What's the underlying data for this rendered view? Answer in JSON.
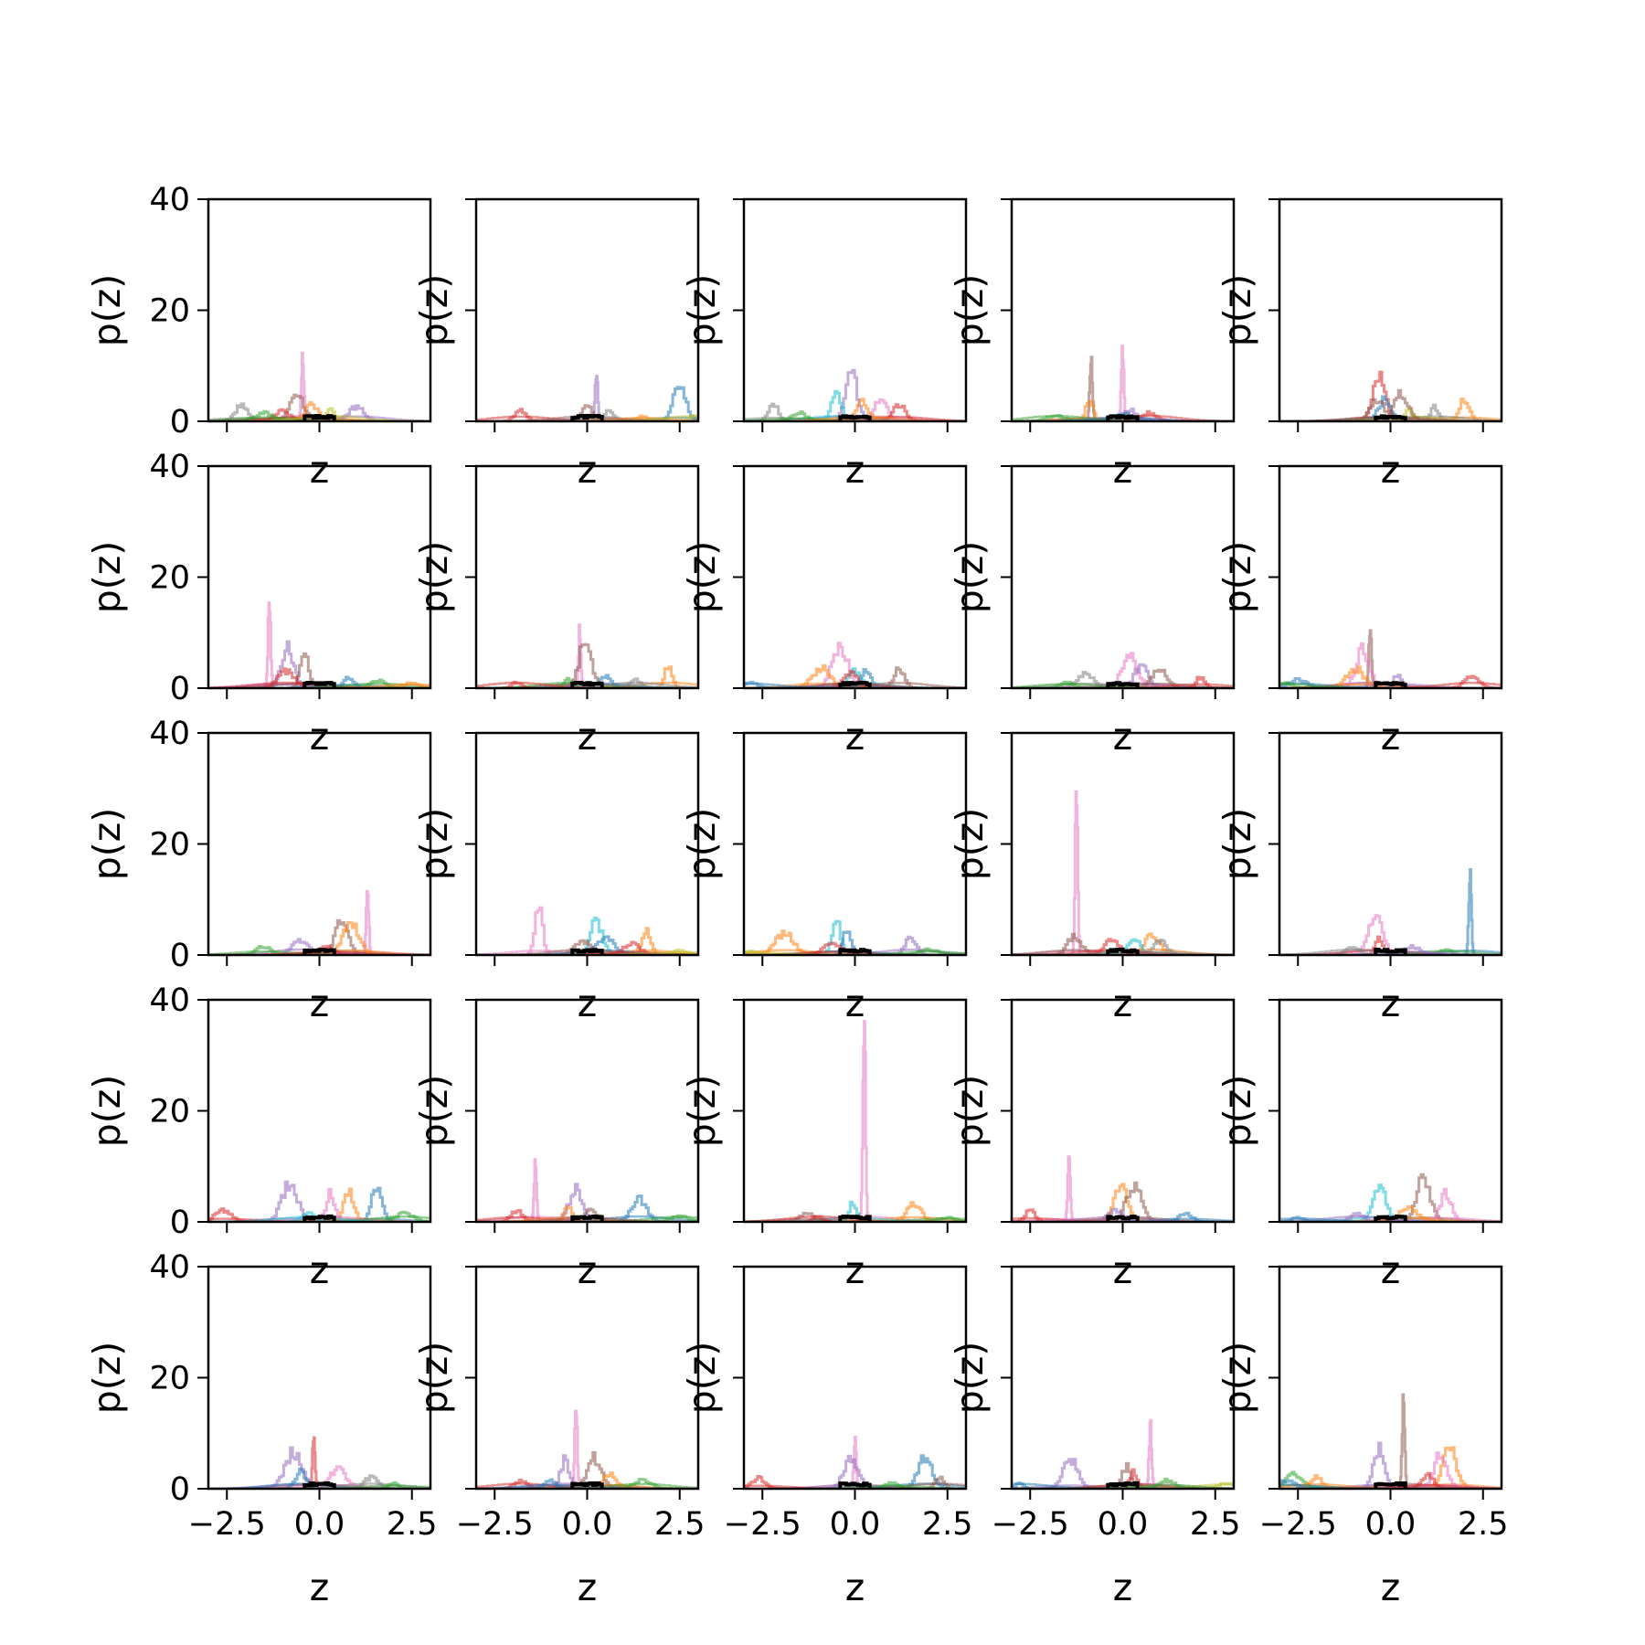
{
  "chart_data": {
    "type": "histogram-grid",
    "grid": {
      "rows": 5,
      "cols": 5
    },
    "xlabel": "z",
    "ylabel": "p(z)",
    "xlim": [
      -3.0,
      3.0
    ],
    "ylim": [
      0,
      40
    ],
    "xticks": [
      -2.5,
      0.0,
      2.5
    ],
    "xtick_labels": [
      "−2.5",
      "0.0",
      "2.5"
    ],
    "yticks": [
      0,
      20,
      40
    ],
    "ytick_labels": [
      "0",
      "20",
      "40"
    ],
    "series_colors": [
      "#1f77b4",
      "#ff7f0e",
      "#2ca02c",
      "#d62728",
      "#9467bd",
      "#8c564b",
      "#e377c2",
      "#7f7f7f",
      "#bcbd22",
      "#17becf"
    ],
    "summary_color": "#000000",
    "panels": [
      {
        "row": 0,
        "col": 0,
        "peaks": [
          {
            "c": 6,
            "x": -0.45,
            "h": 12.0
          },
          {
            "c": 7,
            "x": -2.1,
            "h": 3.0
          },
          {
            "c": 5,
            "x": -0.6,
            "h": 4.5
          },
          {
            "c": 1,
            "x": -0.2,
            "h": 3.0
          },
          {
            "c": 4,
            "x": 1.0,
            "h": 2.5
          },
          {
            "c": 3,
            "x": -1.0,
            "h": 2.0
          },
          {
            "c": 2,
            "x": -1.5,
            "h": 1.5
          },
          {
            "c": 8,
            "x": 0.3,
            "h": 2.0
          }
        ]
      },
      {
        "row": 0,
        "col": 1,
        "peaks": [
          {
            "c": 4,
            "x": 0.25,
            "h": 9.5
          },
          {
            "c": 0,
            "x": 2.5,
            "h": 7.0
          },
          {
            "c": 3,
            "x": -1.8,
            "h": 2.0
          },
          {
            "c": 5,
            "x": 0.0,
            "h": 3.0
          },
          {
            "c": 7,
            "x": 0.6,
            "h": 2.0
          },
          {
            "c": 1,
            "x": 1.5,
            "h": 1.0
          },
          {
            "c": 8,
            "x": 2.9,
            "h": 1.0
          }
        ]
      },
      {
        "row": 0,
        "col": 2,
        "peaks": [
          {
            "c": 4,
            "x": -0.1,
            "h": 9.0
          },
          {
            "c": 9,
            "x": -0.5,
            "h": 5.0
          },
          {
            "c": 7,
            "x": -2.2,
            "h": 3.0
          },
          {
            "c": 6,
            "x": 0.7,
            "h": 4.5
          },
          {
            "c": 3,
            "x": 1.2,
            "h": 3.0
          },
          {
            "c": 2,
            "x": -1.5,
            "h": 1.5
          },
          {
            "c": 1,
            "x": 0.2,
            "h": 3.5
          }
        ]
      },
      {
        "row": 0,
        "col": 3,
        "peaks": [
          {
            "c": 6,
            "x": 0.0,
            "h": 12.5
          },
          {
            "c": 5,
            "x": -0.85,
            "h": 12.0
          },
          {
            "c": 1,
            "x": -0.9,
            "h": 3.5
          },
          {
            "c": 4,
            "x": 0.2,
            "h": 2.0
          },
          {
            "c": 3,
            "x": 0.7,
            "h": 1.5
          },
          {
            "c": 2,
            "x": -1.8,
            "h": 1.0
          },
          {
            "c": 0,
            "x": 0.0,
            "h": 1.5
          }
        ]
      },
      {
        "row": 0,
        "col": 4,
        "peaks": [
          {
            "c": 3,
            "x": -0.3,
            "h": 8.0
          },
          {
            "c": 0,
            "x": -0.15,
            "h": 4.0
          },
          {
            "c": 5,
            "x": -0.35,
            "h": 4.0
          },
          {
            "c": 1,
            "x": 2.0,
            "h": 4.0
          },
          {
            "c": 7,
            "x": 1.2,
            "h": 2.5
          },
          {
            "c": 8,
            "x": 0.5,
            "h": 2.0
          },
          {
            "c": 5,
            "x": 0.3,
            "h": 5.0
          }
        ]
      },
      {
        "row": 1,
        "col": 0,
        "peaks": [
          {
            "c": 6,
            "x": -1.35,
            "h": 15.5
          },
          {
            "c": 4,
            "x": -0.85,
            "h": 7.0
          },
          {
            "c": 5,
            "x": -0.4,
            "h": 6.5
          },
          {
            "c": 3,
            "x": -0.9,
            "h": 3.0
          },
          {
            "c": 0,
            "x": 0.8,
            "h": 2.0
          },
          {
            "c": 2,
            "x": 1.6,
            "h": 1.5
          },
          {
            "c": 1,
            "x": 2.5,
            "h": 1.0
          }
        ]
      },
      {
        "row": 1,
        "col": 1,
        "peaks": [
          {
            "c": 6,
            "x": -0.2,
            "h": 10.0
          },
          {
            "c": 5,
            "x": -0.05,
            "h": 8.0
          },
          {
            "c": 1,
            "x": 2.2,
            "h": 4.0
          },
          {
            "c": 0,
            "x": 0.5,
            "h": 2.0
          },
          {
            "c": 2,
            "x": -0.5,
            "h": 1.5
          },
          {
            "c": 7,
            "x": 1.3,
            "h": 1.5
          },
          {
            "c": 3,
            "x": -1.9,
            "h": 1.0
          }
        ]
      },
      {
        "row": 1,
        "col": 2,
        "peaks": [
          {
            "c": 6,
            "x": -0.4,
            "h": 7.5
          },
          {
            "c": 1,
            "x": -0.9,
            "h": 3.5
          },
          {
            "c": 0,
            "x": 0.3,
            "h": 3.5
          },
          {
            "c": 5,
            "x": 1.2,
            "h": 3.5
          },
          {
            "c": 9,
            "x": 0.0,
            "h": 3.0
          },
          {
            "c": 3,
            "x": -0.1,
            "h": 2.5
          },
          {
            "c": 0,
            "x": -2.8,
            "h": 1.0
          }
        ]
      },
      {
        "row": 1,
        "col": 3,
        "peaks": [
          {
            "c": 6,
            "x": 0.2,
            "h": 5.5
          },
          {
            "c": 4,
            "x": 0.5,
            "h": 4.0
          },
          {
            "c": 5,
            "x": 1.0,
            "h": 3.5
          },
          {
            "c": 7,
            "x": -1.0,
            "h": 2.5
          },
          {
            "c": 3,
            "x": 2.1,
            "h": 2.0
          },
          {
            "c": 2,
            "x": -1.5,
            "h": 1.0
          }
        ]
      },
      {
        "row": 1,
        "col": 4,
        "peaks": [
          {
            "c": 5,
            "x": -0.55,
            "h": 11.5
          },
          {
            "c": 6,
            "x": -0.75,
            "h": 7.0
          },
          {
            "c": 1,
            "x": -0.95,
            "h": 3.5
          },
          {
            "c": 4,
            "x": 0.2,
            "h": 2.5
          },
          {
            "c": 3,
            "x": 2.2,
            "h": 2.0
          },
          {
            "c": 0,
            "x": -2.5,
            "h": 1.5
          },
          {
            "c": 2,
            "x": -2.9,
            "h": 1.0
          }
        ]
      },
      {
        "row": 2,
        "col": 0,
        "peaks": [
          {
            "c": 6,
            "x": 1.3,
            "h": 12.0
          },
          {
            "c": 5,
            "x": 0.6,
            "h": 6.0
          },
          {
            "c": 1,
            "x": 0.85,
            "h": 5.5
          },
          {
            "c": 4,
            "x": -0.5,
            "h": 2.5
          },
          {
            "c": 2,
            "x": -1.5,
            "h": 1.5
          },
          {
            "c": 3,
            "x": 0.2,
            "h": 1.5
          }
        ]
      },
      {
        "row": 2,
        "col": 1,
        "peaks": [
          {
            "c": 6,
            "x": -1.3,
            "h": 8.5
          },
          {
            "c": 9,
            "x": 0.25,
            "h": 6.0
          },
          {
            "c": 1,
            "x": 1.6,
            "h": 4.5
          },
          {
            "c": 0,
            "x": 0.5,
            "h": 3.0
          },
          {
            "c": 5,
            "x": -0.1,
            "h": 2.5
          },
          {
            "c": 3,
            "x": 1.2,
            "h": 2.0
          },
          {
            "c": 8,
            "x": 2.5,
            "h": 0.8
          }
        ]
      },
      {
        "row": 2,
        "col": 2,
        "peaks": [
          {
            "c": 9,
            "x": -0.5,
            "h": 6.5
          },
          {
            "c": 0,
            "x": -0.2,
            "h": 5.0
          },
          {
            "c": 1,
            "x": -1.9,
            "h": 4.0
          },
          {
            "c": 4,
            "x": 1.5,
            "h": 3.0
          },
          {
            "c": 3,
            "x": -0.6,
            "h": 2.0
          },
          {
            "c": 2,
            "x": 2.0,
            "h": 1.0
          },
          {
            "c": 8,
            "x": -2.8,
            "h": 0.8
          }
        ]
      },
      {
        "row": 2,
        "col": 3,
        "peaks": [
          {
            "c": 6,
            "x": -1.25,
            "h": 29.0
          },
          {
            "c": 5,
            "x": -1.3,
            "h": 3.5
          },
          {
            "c": 1,
            "x": 0.8,
            "h": 3.5
          },
          {
            "c": 9,
            "x": 0.3,
            "h": 3.0
          },
          {
            "c": 7,
            "x": 1.0,
            "h": 2.5
          },
          {
            "c": 3,
            "x": -0.3,
            "h": 2.5
          }
        ]
      },
      {
        "row": 2,
        "col": 4,
        "peaks": [
          {
            "c": 0,
            "x": 2.15,
            "h": 16.5
          },
          {
            "c": 6,
            "x": -0.4,
            "h": 7.5
          },
          {
            "c": 3,
            "x": -0.3,
            "h": 3.0
          },
          {
            "c": 7,
            "x": -1.0,
            "h": 1.5
          },
          {
            "c": 2,
            "x": 1.5,
            "h": 1.0
          },
          {
            "c": 4,
            "x": 0.6,
            "h": 1.5
          }
        ]
      },
      {
        "row": 3,
        "col": 0,
        "peaks": [
          {
            "c": 0,
            "x": 1.55,
            "h": 6.0
          },
          {
            "c": 4,
            "x": -0.8,
            "h": 7.0
          },
          {
            "c": 1,
            "x": 0.8,
            "h": 5.5
          },
          {
            "c": 6,
            "x": 0.3,
            "h": 5.0
          },
          {
            "c": 3,
            "x": -2.6,
            "h": 2.0
          },
          {
            "c": 2,
            "x": 2.3,
            "h": 1.5
          },
          {
            "c": 9,
            "x": -0.3,
            "h": 1.5
          }
        ]
      },
      {
        "row": 3,
        "col": 1,
        "peaks": [
          {
            "c": 6,
            "x": -1.4,
            "h": 10.5
          },
          {
            "c": 4,
            "x": -0.3,
            "h": 6.0
          },
          {
            "c": 0,
            "x": 1.4,
            "h": 4.0
          },
          {
            "c": 3,
            "x": -1.9,
            "h": 2.0
          },
          {
            "c": 1,
            "x": -0.5,
            "h": 2.5
          },
          {
            "c": 2,
            "x": 2.5,
            "h": 1.0
          },
          {
            "c": 5,
            "x": 0.1,
            "h": 2.0
          }
        ]
      },
      {
        "row": 3,
        "col": 2,
        "peaks": [
          {
            "c": 6,
            "x": 0.25,
            "h": 38.0
          },
          {
            "c": 1,
            "x": 1.6,
            "h": 3.5
          },
          {
            "c": 9,
            "x": -0.05,
            "h": 3.5
          },
          {
            "c": 5,
            "x": -1.3,
            "h": 1.5
          },
          {
            "c": 2,
            "x": 2.5,
            "h": 0.8
          },
          {
            "c": 3,
            "x": -1.0,
            "h": 1.0
          }
        ]
      },
      {
        "row": 3,
        "col": 3,
        "peaks": [
          {
            "c": 6,
            "x": -1.45,
            "h": 12.0
          },
          {
            "c": 1,
            "x": -0.05,
            "h": 7.0
          },
          {
            "c": 5,
            "x": 0.3,
            "h": 6.5
          },
          {
            "c": 3,
            "x": -2.5,
            "h": 2.0
          },
          {
            "c": 0,
            "x": 1.7,
            "h": 1.5
          },
          {
            "c": 4,
            "x": -0.2,
            "h": 2.0
          }
        ]
      },
      {
        "row": 3,
        "col": 4,
        "peaks": [
          {
            "c": 5,
            "x": 0.9,
            "h": 8.0
          },
          {
            "c": 9,
            "x": -0.3,
            "h": 6.5
          },
          {
            "c": 6,
            "x": 1.5,
            "h": 5.0
          },
          {
            "c": 1,
            "x": 0.5,
            "h": 2.5
          },
          {
            "c": 4,
            "x": -0.9,
            "h": 1.5
          },
          {
            "c": 0,
            "x": -2.5,
            "h": 0.8
          }
        ]
      },
      {
        "row": 4,
        "col": 0,
        "peaks": [
          {
            "c": 3,
            "x": -0.15,
            "h": 9.5
          },
          {
            "c": 4,
            "x": -0.7,
            "h": 6.5
          },
          {
            "c": 6,
            "x": 0.5,
            "h": 3.5
          },
          {
            "c": 0,
            "x": -0.5,
            "h": 3.0
          },
          {
            "c": 7,
            "x": 1.4,
            "h": 2.0
          },
          {
            "c": 2,
            "x": 2.0,
            "h": 1.0
          }
        ]
      },
      {
        "row": 4,
        "col": 1,
        "peaks": [
          {
            "c": 6,
            "x": -0.3,
            "h": 13.5
          },
          {
            "c": 5,
            "x": 0.2,
            "h": 5.5
          },
          {
            "c": 4,
            "x": -0.6,
            "h": 5.0
          },
          {
            "c": 1,
            "x": 0.6,
            "h": 2.5
          },
          {
            "c": 3,
            "x": -1.8,
            "h": 1.5
          },
          {
            "c": 2,
            "x": 1.5,
            "h": 1.5
          },
          {
            "c": 0,
            "x": -1.0,
            "h": 1.5
          }
        ]
      },
      {
        "row": 4,
        "col": 2,
        "peaks": [
          {
            "c": 6,
            "x": 0.0,
            "h": 9.5
          },
          {
            "c": 0,
            "x": 1.9,
            "h": 5.5
          },
          {
            "c": 4,
            "x": -0.1,
            "h": 6.0
          },
          {
            "c": 3,
            "x": -2.6,
            "h": 2.0
          },
          {
            "c": 5,
            "x": 2.3,
            "h": 2.0
          },
          {
            "c": 2,
            "x": 1.0,
            "h": 1.0
          }
        ]
      },
      {
        "row": 4,
        "col": 3,
        "peaks": [
          {
            "c": 6,
            "x": 0.75,
            "h": 12.5
          },
          {
            "c": 4,
            "x": -1.4,
            "h": 5.5
          },
          {
            "c": 5,
            "x": 0.1,
            "h": 4.0
          },
          {
            "c": 3,
            "x": 0.3,
            "h": 3.0
          },
          {
            "c": 0,
            "x": -2.8,
            "h": 1.0
          },
          {
            "c": 8,
            "x": 2.8,
            "h": 1.0
          },
          {
            "c": 2,
            "x": 1.2,
            "h": 1.5
          }
        ]
      },
      {
        "row": 4,
        "col": 4,
        "peaks": [
          {
            "c": 5,
            "x": 0.35,
            "h": 15.5
          },
          {
            "c": 1,
            "x": 1.6,
            "h": 7.0
          },
          {
            "c": 6,
            "x": 1.35,
            "h": 6.0
          },
          {
            "c": 4,
            "x": -0.3,
            "h": 7.0
          },
          {
            "c": 2,
            "x": -2.6,
            "h": 2.5
          },
          {
            "c": 1,
            "x": -2.0,
            "h": 2.0
          },
          {
            "c": 3,
            "x": 1.0,
            "h": 2.5
          },
          {
            "c": 0,
            "x": -2.8,
            "h": 1.5
          }
        ]
      }
    ]
  }
}
